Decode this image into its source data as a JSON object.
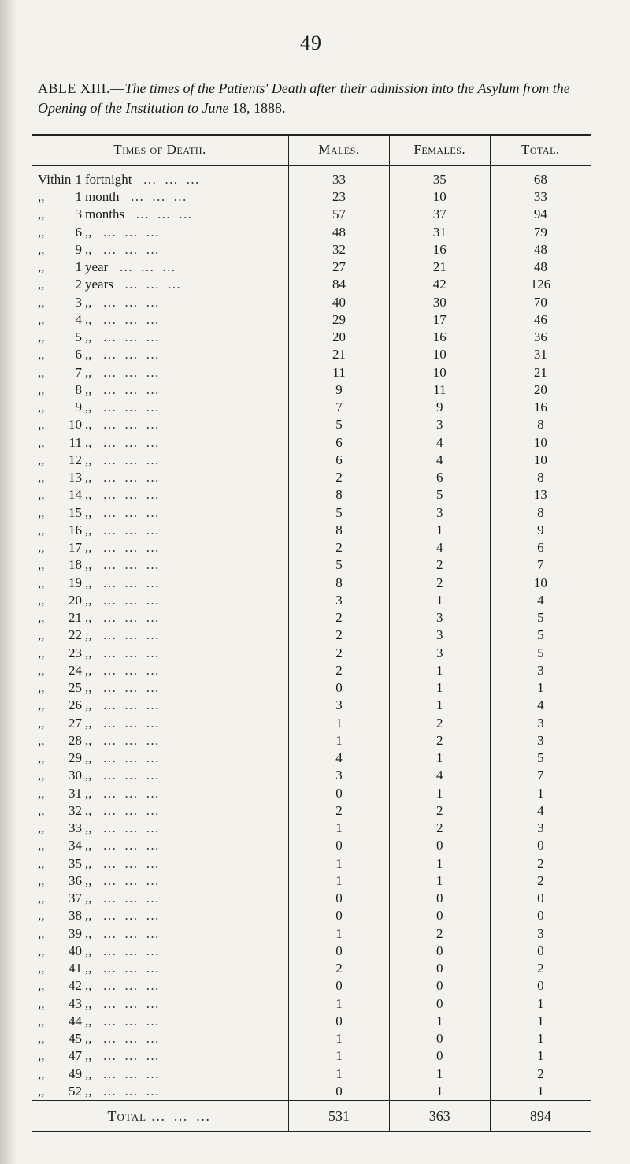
{
  "page_number": "49",
  "caption": {
    "lead": "ABLE   XIII.—",
    "italic": "The times of the Patients' Death after their admission into the Asylum from the Opening of the Institution to June",
    "tail": " 18, 1888."
  },
  "columns": {
    "times": "Times of Death.",
    "males": "Males.",
    "females": "Females.",
    "total": "Total."
  },
  "ditto_mark": ",,",
  "dots": "…   …   …",
  "rows": [
    {
      "prefix": "Vithin",
      "count": "1",
      "unit": "fortnight",
      "males": "33",
      "females": "35",
      "total": "68"
    },
    {
      "prefix": ",,",
      "count": "1",
      "unit": "month",
      "males": "23",
      "females": "10",
      "total": "33"
    },
    {
      "prefix": ",,",
      "count": "3",
      "unit": "months",
      "males": "57",
      "females": "37",
      "total": "94"
    },
    {
      "prefix": ",,",
      "count": "6",
      "unit": ",,",
      "males": "48",
      "females": "31",
      "total": "79"
    },
    {
      "prefix": ",,",
      "count": "9",
      "unit": ",,",
      "males": "32",
      "females": "16",
      "total": "48"
    },
    {
      "prefix": ",,",
      "count": "1",
      "unit": "year",
      "males": "27",
      "females": "21",
      "total": "48"
    },
    {
      "prefix": ",,",
      "count": "2",
      "unit": "years",
      "males": "84",
      "females": "42",
      "total": "126"
    },
    {
      "prefix": ",,",
      "count": "3",
      "unit": ",,",
      "males": "40",
      "females": "30",
      "total": "70"
    },
    {
      "prefix": ",,",
      "count": "4",
      "unit": ",,",
      "males": "29",
      "females": "17",
      "total": "46"
    },
    {
      "prefix": ",,",
      "count": "5",
      "unit": ",,",
      "males": "20",
      "females": "16",
      "total": "36"
    },
    {
      "prefix": ",,",
      "count": "6",
      "unit": ",,",
      "males": "21",
      "females": "10",
      "total": "31"
    },
    {
      "prefix": ",,",
      "count": "7",
      "unit": ",,",
      "males": "11",
      "females": "10",
      "total": "21"
    },
    {
      "prefix": ",,",
      "count": "8",
      "unit": ",,",
      "males": "9",
      "females": "11",
      "total": "20"
    },
    {
      "prefix": ",,",
      "count": "9",
      "unit": ",,",
      "males": "7",
      "females": "9",
      "total": "16"
    },
    {
      "prefix": ",,",
      "count": "10",
      "unit": ",,",
      "males": "5",
      "females": "3",
      "total": "8"
    },
    {
      "prefix": ",,",
      "count": "11",
      "unit": ",,",
      "males": "6",
      "females": "4",
      "total": "10"
    },
    {
      "prefix": ",,",
      "count": "12",
      "unit": ",,",
      "males": "6",
      "females": "4",
      "total": "10"
    },
    {
      "prefix": ",,",
      "count": "13",
      "unit": ",,",
      "males": "2",
      "females": "6",
      "total": "8"
    },
    {
      "prefix": ",,",
      "count": "14",
      "unit": ",,",
      "males": "8",
      "females": "5",
      "total": "13"
    },
    {
      "prefix": ",,",
      "count": "15",
      "unit": ",,",
      "males": "5",
      "females": "3",
      "total": "8"
    },
    {
      "prefix": ",,",
      "count": "16",
      "unit": ",,",
      "males": "8",
      "females": "1",
      "total": "9"
    },
    {
      "prefix": ",,",
      "count": "17",
      "unit": ",,",
      "males": "2",
      "females": "4",
      "total": "6"
    },
    {
      "prefix": ",,",
      "count": "18",
      "unit": ",,",
      "males": "5",
      "females": "2",
      "total": "7"
    },
    {
      "prefix": ",,",
      "count": "19",
      "unit": ",,",
      "males": "8",
      "females": "2",
      "total": "10"
    },
    {
      "prefix": ",,",
      "count": "20",
      "unit": ",,",
      "males": "3",
      "females": "1",
      "total": "4"
    },
    {
      "prefix": ",,",
      "count": "21",
      "unit": ",,",
      "males": "2",
      "females": "3",
      "total": "5"
    },
    {
      "prefix": ",,",
      "count": "22",
      "unit": ",,",
      "males": "2",
      "females": "3",
      "total": "5"
    },
    {
      "prefix": ",,",
      "count": "23",
      "unit": ",,",
      "males": "2",
      "females": "3",
      "total": "5"
    },
    {
      "prefix": ",,",
      "count": "24",
      "unit": ",,",
      "males": "2",
      "females": "1",
      "total": "3"
    },
    {
      "prefix": ",,",
      "count": "25",
      "unit": ",,",
      "males": "0",
      "females": "1",
      "total": "1"
    },
    {
      "prefix": ",,",
      "count": "26",
      "unit": ",,",
      "males": "3",
      "females": "1",
      "total": "4"
    },
    {
      "prefix": ",,",
      "count": "27",
      "unit": ",,",
      "males": "1",
      "females": "2",
      "total": "3"
    },
    {
      "prefix": ",,",
      "count": "28",
      "unit": ",,",
      "males": "1",
      "females": "2",
      "total": "3"
    },
    {
      "prefix": ",,",
      "count": "29",
      "unit": ",,",
      "males": "4",
      "females": "1",
      "total": "5"
    },
    {
      "prefix": ",,",
      "count": "30",
      "unit": ",,",
      "males": "3",
      "females": "4",
      "total": "7"
    },
    {
      "prefix": ",,",
      "count": "31",
      "unit": ",,",
      "males": "0",
      "females": "1",
      "total": "1"
    },
    {
      "prefix": ",,",
      "count": "32",
      "unit": ",,",
      "males": "2",
      "females": "2",
      "total": "4"
    },
    {
      "prefix": ",,",
      "count": "33",
      "unit": ",,",
      "males": "1",
      "females": "2",
      "total": "3"
    },
    {
      "prefix": ",,",
      "count": "34",
      "unit": ",,",
      "males": "0",
      "females": "0",
      "total": "0"
    },
    {
      "prefix": ",,",
      "count": "35",
      "unit": ",,",
      "males": "1",
      "females": "1",
      "total": "2"
    },
    {
      "prefix": ",,",
      "count": "36",
      "unit": ",,",
      "males": "1",
      "females": "1",
      "total": "2"
    },
    {
      "prefix": ",,",
      "count": "37",
      "unit": ",,",
      "males": "0",
      "females": "0",
      "total": "0"
    },
    {
      "prefix": ",,",
      "count": "38",
      "unit": ",,",
      "males": "0",
      "females": "0",
      "total": "0"
    },
    {
      "prefix": ",,",
      "count": "39",
      "unit": ",,",
      "males": "1",
      "females": "2",
      "total": "3"
    },
    {
      "prefix": ",,",
      "count": "40",
      "unit": ",,",
      "males": "0",
      "females": "0",
      "total": "0"
    },
    {
      "prefix": ",,",
      "count": "41",
      "unit": ",,",
      "males": "2",
      "females": "0",
      "total": "2"
    },
    {
      "prefix": ",,",
      "count": "42",
      "unit": ",,",
      "males": "0",
      "females": "0",
      "total": "0"
    },
    {
      "prefix": ",,",
      "count": "43",
      "unit": ",,",
      "males": "1",
      "females": "0",
      "total": "1"
    },
    {
      "prefix": ",,",
      "count": "44",
      "unit": ",,",
      "males": "0",
      "females": "1",
      "total": "1"
    },
    {
      "prefix": ",,",
      "count": "45",
      "unit": ",,",
      "males": "1",
      "females": "0",
      "total": "1"
    },
    {
      "prefix": ",,",
      "count": "47",
      "unit": ",,",
      "males": "1",
      "females": "0",
      "total": "1"
    },
    {
      "prefix": ",,",
      "count": "49",
      "unit": ",,",
      "males": "1",
      "females": "1",
      "total": "2"
    },
    {
      "prefix": ",,",
      "count": "52",
      "unit": ",,",
      "males": "0",
      "females": "1",
      "total": "1"
    }
  ],
  "total_row": {
    "label": "Total",
    "males": "531",
    "females": "363",
    "total": "894"
  }
}
